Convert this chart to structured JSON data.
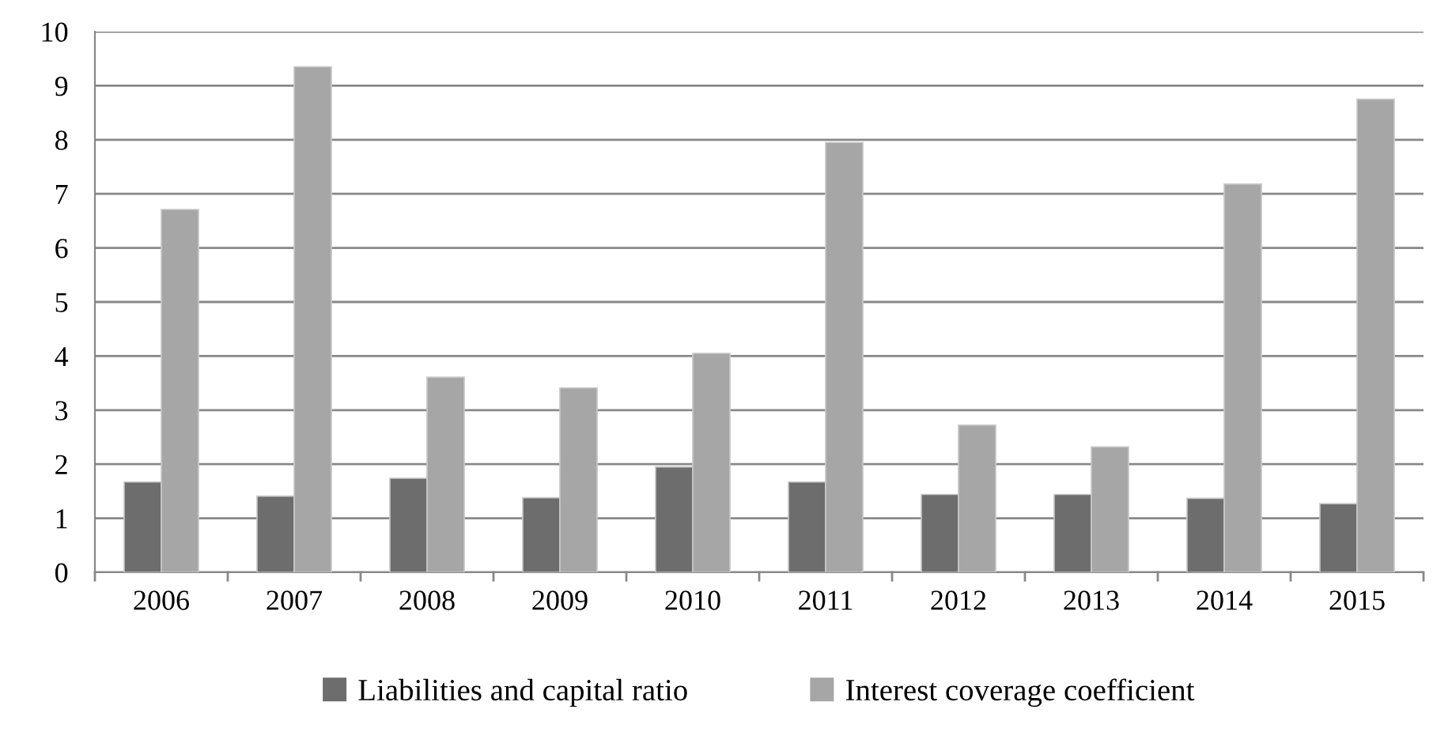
{
  "chart_data": {
    "type": "bar",
    "categories": [
      "2006",
      "2007",
      "2008",
      "2009",
      "2010",
      "2011",
      "2012",
      "2013",
      "2014",
      "2015"
    ],
    "series": [
      {
        "name": "Liabilities and capital ratio",
        "color": "#6d6d6d",
        "values": [
          1.67,
          1.41,
          1.74,
          1.38,
          1.95,
          1.67,
          1.44,
          1.44,
          1.37,
          1.27
        ]
      },
      {
        "name": "Interest coverage coefficient",
        "color": "#a6a6a6",
        "values": [
          6.71,
          9.35,
          3.61,
          3.41,
          4.05,
          7.95,
          2.72,
          2.32,
          7.18,
          8.75
        ]
      }
    ],
    "ylim": [
      0,
      10
    ],
    "yticks": [
      0,
      1,
      2,
      3,
      4,
      5,
      6,
      7,
      8,
      9,
      10
    ],
    "grid": "y",
    "legend": "bottom"
  }
}
